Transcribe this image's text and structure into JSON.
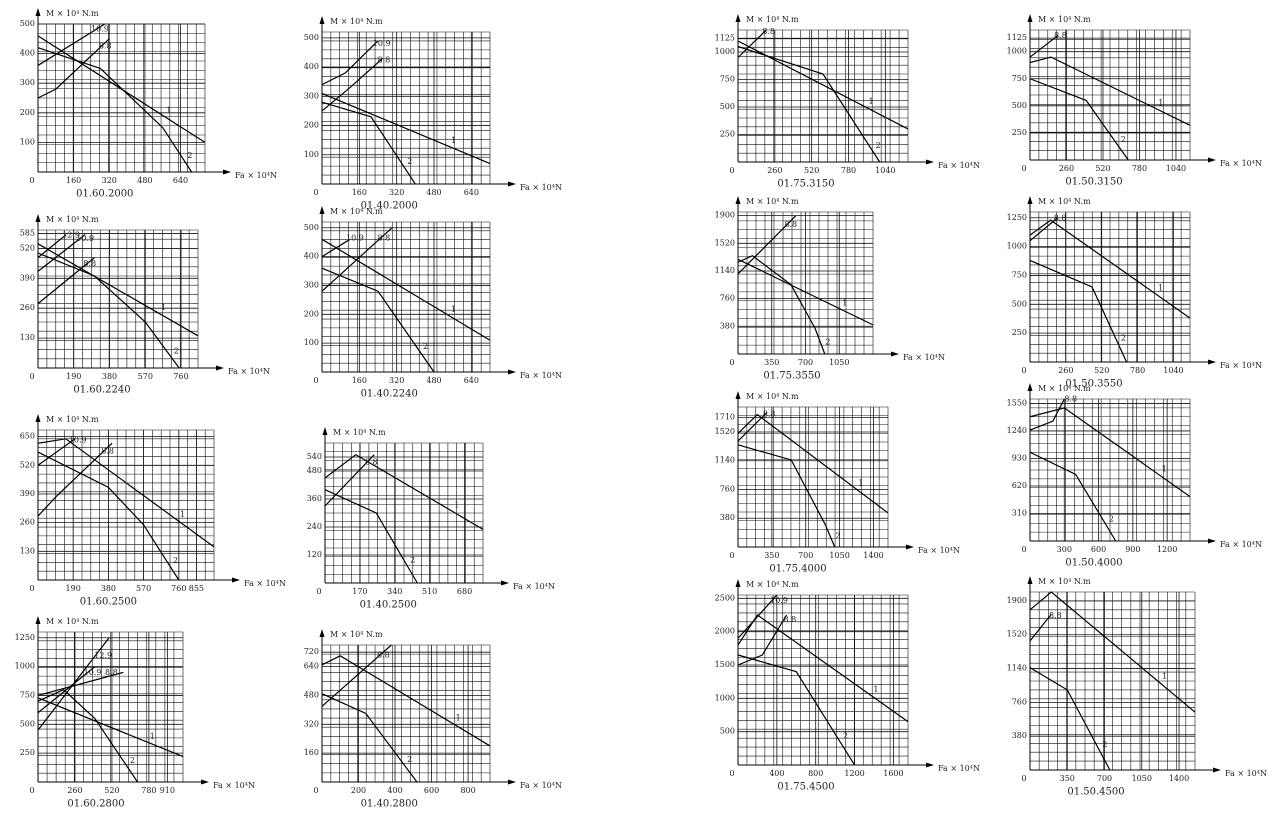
{
  "chart_data": [
    {
      "type": "line",
      "title": "01.60.2000",
      "y_label": "M × 10⁴ N.m",
      "x_label": "Fa × 10⁴N",
      "color": "#000000",
      "grid": true,
      "xlim": [
        0,
        750
      ],
      "ylim": [
        0,
        500
      ],
      "xticks": [
        0,
        160,
        320,
        480,
        640
      ],
      "yticks": [
        100,
        200,
        300,
        400,
        500
      ],
      "series": [
        {
          "name": "1",
          "x": [
            0,
            750
          ],
          "values": [
            460,
            100
          ]
        },
        {
          "name": "2",
          "x": [
            0,
            280,
            560,
            690
          ],
          "values": [
            420,
            350,
            150,
            0
          ]
        },
        {
          "name": "10.9",
          "x": [
            0,
            300
          ],
          "values": [
            360,
            500
          ]
        },
        {
          "name": "8.8",
          "x": [
            0,
            80,
            320
          ],
          "values": [
            250,
            280,
            450
          ]
        }
      ]
    },
    {
      "type": "line",
      "title": "01.40.2000",
      "y_label": "M × 10⁴ N.m",
      "x_label": "Fa × 10⁴N",
      "color": "#000000",
      "grid": true,
      "xlim": [
        0,
        720
      ],
      "ylim": [
        0,
        520
      ],
      "xticks": [
        0,
        160,
        320,
        480,
        640
      ],
      "yticks": [
        100,
        200,
        300,
        400,
        500
      ],
      "series": [
        {
          "name": "1",
          "x": [
            0,
            720
          ],
          "values": [
            310,
            70
          ]
        },
        {
          "name": "2",
          "x": [
            0,
            210,
            400
          ],
          "values": [
            280,
            230,
            0
          ]
        },
        {
          "name": "10.9",
          "x": [
            0,
            100,
            240
          ],
          "values": [
            340,
            380,
            490
          ]
        },
        {
          "name": "8.8",
          "x": [
            0,
            120,
            260
          ],
          "values": [
            250,
            330,
            430
          ]
        }
      ]
    },
    {
      "type": "line",
      "title": "01.60.2240",
      "y_label": "M × 10⁴ N.m",
      "x_label": "Fa × 10⁴N",
      "color": "#000000",
      "grid": true,
      "xlim": [
        0,
        850
      ],
      "ylim": [
        0,
        600
      ],
      "xticks": [
        0,
        190,
        380,
        570,
        760
      ],
      "yticks": [
        130,
        260,
        390,
        520,
        585
      ],
      "series": [
        {
          "name": "1",
          "x": [
            0,
            850
          ],
          "values": [
            540,
            140
          ]
        },
        {
          "name": "2",
          "x": [
            0,
            300,
            570,
            750
          ],
          "values": [
            500,
            400,
            200,
            0
          ]
        },
        {
          "name": "12.9",
          "x": [
            0,
            150
          ],
          "values": [
            480,
            580
          ]
        },
        {
          "name": "10.9",
          "x": [
            0,
            250
          ],
          "values": [
            420,
            580
          ]
        },
        {
          "name": "8.8",
          "x": [
            0,
            300
          ],
          "values": [
            280,
            480
          ]
        }
      ]
    },
    {
      "type": "line",
      "title": "01.40.2240",
      "y_label": "M × 10⁴ N.m",
      "x_label": "Fa × 10⁴N",
      "color": "#000000",
      "grid": true,
      "xlim": [
        0,
        720
      ],
      "ylim": [
        0,
        520
      ],
      "xticks": [
        0,
        160,
        320,
        480,
        640
      ],
      "yticks": [
        100,
        200,
        300,
        400,
        500
      ],
      "series": [
        {
          "name": "1",
          "x": [
            0,
            720
          ],
          "values": [
            460,
            110
          ]
        },
        {
          "name": "2",
          "x": [
            0,
            240,
            480
          ],
          "values": [
            360,
            280,
            0
          ]
        },
        {
          "name": "10.9",
          "x": [
            0,
            120
          ],
          "values": [
            400,
            460
          ]
        },
        {
          "name": "8.8",
          "x": [
            0,
            300
          ],
          "values": [
            280,
            500
          ]
        }
      ]
    },
    {
      "type": "line",
      "title": "01.60.2500",
      "y_label": "M × 10⁴ N.m",
      "x_label": "Fa × 10⁴N",
      "color": "#000000",
      "grid": true,
      "xlim": [
        0,
        950
      ],
      "ylim": [
        0,
        680
      ],
      "xticks": [
        0,
        190,
        380,
        570,
        760,
        855
      ],
      "yticks": [
        130,
        260,
        390,
        520,
        650
      ],
      "series": [
        {
          "name": "1",
          "x": [
            0,
            150,
            950
          ],
          "values": [
            620,
            640,
            150
          ]
        },
        {
          "name": "2",
          "x": [
            0,
            380,
            570,
            760
          ],
          "values": [
            580,
            420,
            250,
            0
          ]
        },
        {
          "name": "10.9",
          "x": [
            0,
            200
          ],
          "values": [
            520,
            640
          ]
        },
        {
          "name": "8.8",
          "x": [
            0,
            100,
            400
          ],
          "values": [
            290,
            380,
            620
          ]
        }
      ]
    },
    {
      "type": "line",
      "title": "01.40.2500",
      "y_label": "M × 10⁴ N.m",
      "x_label": "Fa × 10⁴N",
      "color": "#000000",
      "grid": true,
      "xlim": [
        0,
        770
      ],
      "ylim": [
        0,
        600
      ],
      "xticks": [
        0,
        170,
        340,
        510,
        680
      ],
      "yticks": [
        120,
        240,
        360,
        480,
        540
      ],
      "series": [
        {
          "name": "1",
          "x": [
            0,
            150,
            770
          ],
          "values": [
            450,
            550,
            230
          ]
        },
        {
          "name": "2",
          "x": [
            0,
            250,
            450
          ],
          "values": [
            400,
            300,
            0
          ]
        },
        {
          "name": "8.8",
          "x": [
            0,
            240
          ],
          "values": [
            330,
            550
          ]
        }
      ]
    },
    {
      "type": "line",
      "title": "01.60.2800",
      "y_label": "M × 10⁴ N.m",
      "x_label": "Fa × 10⁴N",
      "color": "#000000",
      "grid": true,
      "xlim": [
        0,
        1020
      ],
      "ylim": [
        0,
        1300
      ],
      "xticks": [
        0,
        260,
        520,
        780,
        910
      ],
      "yticks": [
        250,
        500,
        750,
        1000,
        1250
      ],
      "series": [
        {
          "name": "1",
          "x": [
            0,
            1020
          ],
          "values": [
            730,
            220
          ]
        },
        {
          "name": "2",
          "x": [
            0,
            180,
            400,
            700
          ],
          "values": [
            700,
            800,
            550,
            0
          ]
        },
        {
          "name": "12.9",
          "x": [
            0,
            500
          ],
          "values": [
            450,
            1250
          ]
        },
        {
          "name": "10.9",
          "x": [
            0,
            400
          ],
          "values": [
            600,
            1000
          ]
        },
        {
          "name": "8.8",
          "x": [
            0,
            600
          ],
          "values": [
            750,
            950
          ]
        }
      ]
    },
    {
      "type": "line",
      "title": "01.40.2800",
      "y_label": "M × 10⁴ N.m",
      "x_label": "Fa × 10⁴N",
      "color": "#000000",
      "grid": true,
      "xlim": [
        0,
        920
      ],
      "ylim": [
        0,
        760
      ],
      "xticks": [
        0,
        200,
        400,
        600,
        800
      ],
      "yticks": [
        160,
        320,
        480,
        640,
        720
      ],
      "series": [
        {
          "name": "1",
          "x": [
            0,
            100,
            920
          ],
          "values": [
            650,
            700,
            200
          ]
        },
        {
          "name": "2",
          "x": [
            0,
            240,
            520
          ],
          "values": [
            490,
            380,
            0
          ]
        },
        {
          "name": "8.8",
          "x": [
            0,
            380
          ],
          "values": [
            420,
            760
          ]
        }
      ]
    },
    {
      "type": "line",
      "title": "01.75.3150",
      "y_label": "M × 10⁴ N.m",
      "x_label": "Fa × 10⁴N",
      "color": "#000000",
      "grid": true,
      "xlim": [
        0,
        1200
      ],
      "ylim": [
        0,
        1200
      ],
      "xticks": [
        0,
        260,
        520,
        780,
        1040
      ],
      "yticks": [
        250,
        500,
        750,
        1000,
        1125
      ],
      "series": [
        {
          "name": "1",
          "x": [
            0,
            1200
          ],
          "values": [
            1100,
            300
          ]
        },
        {
          "name": "2",
          "x": [
            0,
            600,
            800,
            1000
          ],
          "values": [
            1050,
            800,
            400,
            0
          ]
        },
        {
          "name": "8.8",
          "x": [
            0,
            200
          ],
          "values": [
            950,
            1200
          ]
        }
      ]
    },
    {
      "type": "line",
      "title": "01.50.3150",
      "y_label": "M × 10⁴ N.m",
      "x_label": "Fa × 10⁴N",
      "color": "#000000",
      "grid": true,
      "xlim": [
        0,
        1140
      ],
      "ylim": [
        0,
        1200
      ],
      "xticks": [
        0,
        260,
        520,
        780,
        1040
      ],
      "yticks": [
        250,
        500,
        750,
        1000,
        1125
      ],
      "series": [
        {
          "name": "1",
          "x": [
            0,
            150,
            1140
          ],
          "values": [
            900,
            950,
            320
          ]
        },
        {
          "name": "2",
          "x": [
            0,
            400,
            700
          ],
          "values": [
            750,
            550,
            0
          ]
        },
        {
          "name": "8.8",
          "x": [
            0,
            200
          ],
          "values": [
            950,
            1150
          ]
        }
      ]
    },
    {
      "type": "line",
      "title": "01.75.3550",
      "y_label": "M × 10⁴ N.m",
      "x_label": "Fa × 10⁴N",
      "color": "#000000",
      "grid": true,
      "xlim": [
        0,
        1400
      ],
      "ylim": [
        0,
        1950
      ],
      "xticks": [
        0,
        350,
        700,
        1050
      ],
      "yticks": [
        380,
        760,
        1140,
        1520,
        1900
      ],
      "series": [
        {
          "name": "1",
          "x": [
            0,
            1400
          ],
          "values": [
            1300,
            400
          ]
        },
        {
          "name": "2",
          "x": [
            0,
            150,
            550,
            800,
            900
          ],
          "values": [
            1260,
            1350,
            950,
            350,
            0
          ]
        },
        {
          "name": "8.8",
          "x": [
            0,
            600
          ],
          "values": [
            1100,
            1900
          ]
        }
      ]
    },
    {
      "type": "line",
      "title": "01.50.3550",
      "y_label": "M × 10⁴ N.m",
      "x_label": "Fa × 10⁴N",
      "color": "#000000",
      "grid": true,
      "xlim": [
        0,
        1160
      ],
      "ylim": [
        0,
        1300
      ],
      "xticks": [
        0,
        260,
        520,
        780,
        1040
      ],
      "yticks": [
        250,
        500,
        750,
        1000,
        1250
      ],
      "series": [
        {
          "name": "1",
          "x": [
            0,
            150,
            1160
          ],
          "values": [
            1100,
            1230,
            380
          ]
        },
        {
          "name": "2",
          "x": [
            0,
            450,
            700
          ],
          "values": [
            880,
            650,
            0
          ]
        },
        {
          "name": "8.8",
          "x": [
            0,
            200
          ],
          "values": [
            1050,
            1250
          ]
        }
      ]
    },
    {
      "type": "line",
      "title": "01.75.4000",
      "y_label": "M × 10⁴ N.m",
      "x_label": "Fa × 10⁴N",
      "color": "#000000",
      "grid": true,
      "xlim": [
        0,
        1550
      ],
      "ylim": [
        0,
        1850
      ],
      "xticks": [
        0,
        350,
        700,
        1050,
        1400
      ],
      "yticks": [
        380,
        760,
        1140,
        1520,
        1710
      ],
      "series": [
        {
          "name": "1",
          "x": [
            0,
            200,
            1550
          ],
          "values": [
            1500,
            1750,
            450
          ]
        },
        {
          "name": "2",
          "x": [
            0,
            550,
            900,
            1000
          ],
          "values": [
            1350,
            1150,
            300,
            0
          ]
        },
        {
          "name": "8.8",
          "x": [
            0,
            300
          ],
          "values": [
            1400,
            1780
          ]
        }
      ]
    },
    {
      "type": "line",
      "title": "01.50.4000",
      "y_label": "M × 10⁴ N.m",
      "x_label": "Fa × 10⁴N",
      "color": "#000000",
      "grid": true,
      "xlim": [
        0,
        1400
      ],
      "ylim": [
        0,
        1600
      ],
      "xticks": [
        0,
        300,
        600,
        900,
        1200
      ],
      "yticks": [
        310,
        620,
        930,
        1240,
        1550
      ],
      "series": [
        {
          "name": "1",
          "x": [
            0,
            300,
            1400
          ],
          "values": [
            1400,
            1500,
            500
          ]
        },
        {
          "name": "2",
          "x": [
            0,
            400,
            750
          ],
          "values": [
            1000,
            750,
            0
          ]
        },
        {
          "name": "8.8",
          "x": [
            0,
            200,
            300
          ],
          "values": [
            1250,
            1350,
            1600
          ]
        }
      ]
    },
    {
      "type": "line",
      "title": "01.75.4500",
      "y_label": "M × 10⁴ N.m",
      "x_label": "Fa × 10⁴N",
      "color": "#000000",
      "grid": true,
      "xlim": [
        0,
        1750
      ],
      "ylim": [
        0,
        2550
      ],
      "xticks": [
        0,
        400,
        800,
        1200,
        1600
      ],
      "yticks": [
        500,
        1000,
        1500,
        2000,
        2500
      ],
      "series": [
        {
          "name": "1",
          "x": [
            0,
            200,
            1750
          ],
          "values": [
            1800,
            2250,
            650
          ]
        },
        {
          "name": "2",
          "x": [
            0,
            600,
            1200
          ],
          "values": [
            1650,
            1400,
            0
          ]
        },
        {
          "name": "10.9",
          "x": [
            0,
            400
          ],
          "values": [
            1900,
            2550
          ]
        },
        {
          "name": "8.8",
          "x": [
            0,
            250,
            500
          ],
          "values": [
            1500,
            1650,
            2250
          ]
        }
      ]
    },
    {
      "type": "line",
      "title": "01.50.4500",
      "y_label": "M × 10⁴ N.m",
      "x_label": "Fa × 10⁴N",
      "color": "#000000",
      "grid": true,
      "xlim": [
        0,
        1550
      ],
      "ylim": [
        0,
        2000
      ],
      "xticks": [
        0,
        350,
        700,
        1050,
        1400
      ],
      "yticks": [
        380,
        760,
        1140,
        1520,
        1900
      ],
      "series": [
        {
          "name": "1",
          "x": [
            0,
            200,
            1550
          ],
          "values": [
            1800,
            2000,
            650
          ]
        },
        {
          "name": "2",
          "x": [
            0,
            350,
            750
          ],
          "values": [
            1150,
            900,
            0
          ]
        },
        {
          "name": "8.8",
          "x": [
            0,
            200
          ],
          "values": [
            1450,
            1750
          ]
        }
      ]
    }
  ]
}
